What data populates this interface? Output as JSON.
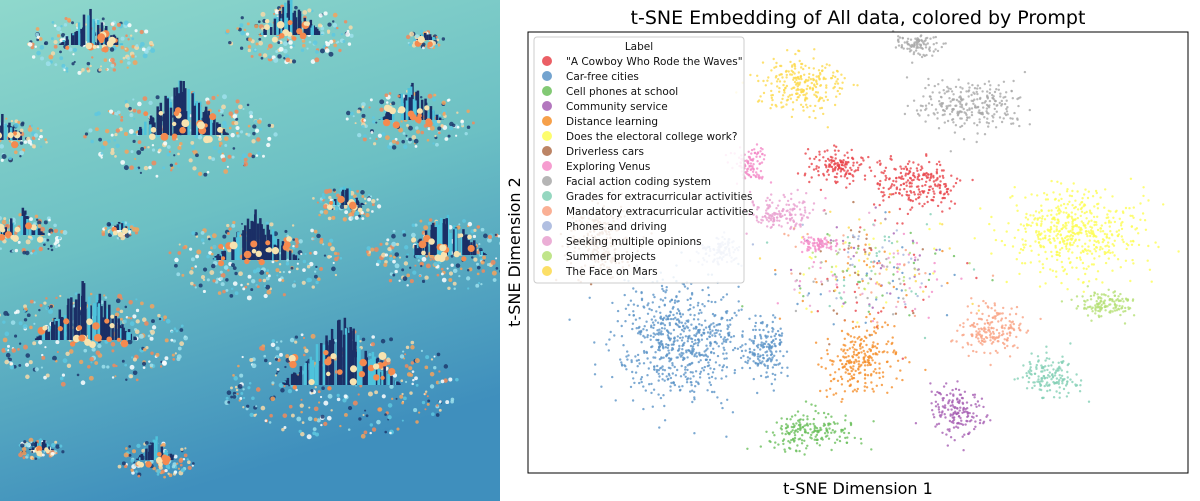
{
  "chart_data": {
    "type": "scatter",
    "title": "t-SNE Embedding of All data, colored by Prompt",
    "xlabel": "t-SNE Dimension 1",
    "ylabel": "t-SNE Dimension 2",
    "xlim": [
      -100,
      100
    ],
    "ylim": [
      -100,
      100
    ],
    "ticks_shown": false,
    "grid": false,
    "legend": {
      "title": "Label",
      "placement": "top-left"
    },
    "series": [
      {
        "name": "\"A Cowboy Who Rode the Waves\"",
        "color": "#e8434a",
        "clusters": [
          {
            "x": -5.5,
            "y": 39.5,
            "sx": 6,
            "sy": 5
          },
          {
            "x": 17.3,
            "y": 30.5,
            "sx": 8,
            "sy": 7
          }
        ]
      },
      {
        "name": "Car-free cities",
        "color": "#5b93c7",
        "clusters": [
          {
            "x": -54,
            "y": -40,
            "sx": 12,
            "sy": 17
          },
          {
            "x": -28,
            "y": -44,
            "sx": 4,
            "sy": 8
          }
        ]
      },
      {
        "name": "Cell phones at school",
        "color": "#6cbf5c",
        "clusters": [
          {
            "x": -14.5,
            "y": -81,
            "sx": 9,
            "sy": 5
          }
        ]
      },
      {
        "name": "Community service",
        "color": "#a65fb3",
        "clusters": [
          {
            "x": 29.4,
            "y": -72,
            "sx": 5,
            "sy": 7
          }
        ]
      },
      {
        "name": "Distance learning",
        "color": "#f58f2a",
        "clusters": [
          {
            "x": 0.6,
            "y": -49,
            "sx": 7,
            "sy": 9
          }
        ]
      },
      {
        "name": "Does the electoral college work?",
        "color": "#fdfd55",
        "clusters": [
          {
            "x": 65.8,
            "y": 10,
            "sx": 13,
            "sy": 12
          }
        ]
      },
      {
        "name": "Driverless cars",
        "color": "#b06f4a",
        "clusters": [
          {
            "x": -78,
            "y": 5.5,
            "sx": 6,
            "sy": 10
          }
        ]
      },
      {
        "name": "Exploring Venus",
        "color": "#f48cc8",
        "clusters": [
          {
            "x": -32.7,
            "y": 39.5,
            "sx": 3,
            "sy": 5
          },
          {
            "x": -12,
            "y": 4,
            "sx": 3,
            "sy": 2
          }
        ]
      },
      {
        "name": "Facial action coding system",
        "color": "#a8a8a8",
        "clusters": [
          {
            "x": 17.3,
            "y": 94,
            "sx": 4,
            "sy": 3
          },
          {
            "x": 34,
            "y": 66.8,
            "sx": 10,
            "sy": 7
          }
        ]
      },
      {
        "name": "Grades for extracurricular activities",
        "color": "#83d0b5",
        "clusters": [
          {
            "x": 58,
            "y": -56,
            "sx": 5,
            "sy": 6
          }
        ]
      },
      {
        "name": "Mandatory extracurricular activities",
        "color": "#f9a283",
        "clusters": [
          {
            "x": 40,
            "y": -35.5,
            "sx": 6,
            "sy": 7
          }
        ]
      },
      {
        "name": "Phones and driving",
        "color": "#a3b4dc",
        "clusters": [
          {
            "x": -41.8,
            "y": 1,
            "sx": 4,
            "sy": 4
          }
        ]
      },
      {
        "name": "Seeking multiple opinions",
        "color": "#e8a0cf",
        "clusters": [
          {
            "x": -23.6,
            "y": 16.8,
            "sx": 6,
            "sy": 5
          }
        ]
      },
      {
        "name": "Summer projects",
        "color": "#b5e075",
        "clusters": [
          {
            "x": 74.8,
            "y": -24,
            "sx": 6,
            "sy": 4
          }
        ]
      },
      {
        "name": "The Face on Mars",
        "color": "#fcd94c",
        "clusters": [
          {
            "x": -17.6,
            "y": 76,
            "sx": 8,
            "sy": 8
          }
        ]
      }
    ],
    "mixed_region": {
      "x": 3.6,
      "y": -8,
      "sx": 14,
      "sy": 12
    }
  }
}
